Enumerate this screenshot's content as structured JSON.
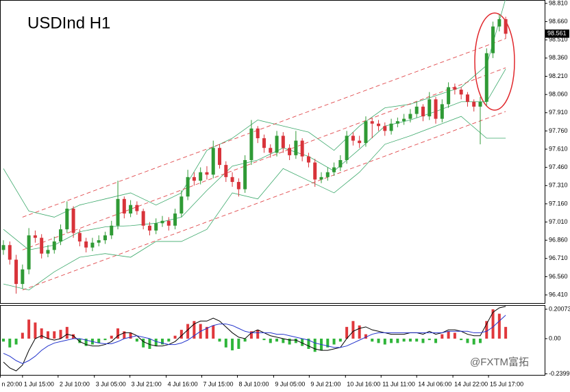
{
  "chart_data": [
    {
      "type": "candlestick",
      "title": "USDInd  H1",
      "up_color": "#2f9a35",
      "down_color": "#d8333a",
      "xlim": [
        -0.54,
        85.13
      ],
      "xticks": [
        {
          "value": -0.5,
          "label": "n 20:00"
        },
        {
          "value": 3.0,
          "label": "1 Jul 15:00"
        },
        {
          "value": 8.6,
          "label": "2 Jul 10:00"
        },
        {
          "value": 14.3,
          "label": "3 Jul 05:00"
        },
        {
          "value": 19.9,
          "label": "3 Jul 21:00"
        },
        {
          "value": 25.6,
          "label": "4 Jul 16:00"
        },
        {
          "value": 31.2,
          "label": "7 Jul 15:00"
        },
        {
          "value": 36.8,
          "label": "8 Jul 10:00"
        },
        {
          "value": 42.5,
          "label": "9 Jul 05:00"
        },
        {
          "value": 48.1,
          "label": "9 Jul 21:00"
        },
        {
          "value": 53.8,
          "label": "10 Jul 16:00"
        },
        {
          "value": 59.4,
          "label": "11 Jul 11:00"
        },
        {
          "value": 65.0,
          "label": "14 Jul 06:00"
        },
        {
          "value": 70.7,
          "label": "14 Jul 22:00"
        },
        {
          "value": 76.3,
          "label": "15 Jul 17:00"
        }
      ],
      "ylim": [
        96.354,
        98.838
      ],
      "yticks": [
        {
          "value": 98.81,
          "label": "98.810"
        },
        {
          "value": 98.66,
          "label": "98.660"
        },
        {
          "value": 98.51,
          "label": "98.510"
        },
        {
          "value": 98.36,
          "label": "98.360"
        },
        {
          "value": 98.21,
          "label": "98.210"
        },
        {
          "value": 98.06,
          "label": "98.060"
        },
        {
          "value": 97.91,
          "label": "97.910"
        },
        {
          "value": 97.76,
          "label": "97.760"
        },
        {
          "value": 97.61,
          "label": "97.610"
        },
        {
          "value": 97.46,
          "label": "97.460"
        },
        {
          "value": 97.31,
          "label": "97.310"
        },
        {
          "value": 97.16,
          "label": "97.160"
        },
        {
          "value": 97.01,
          "label": "97.010"
        },
        {
          "value": 96.86,
          "label": "96.860"
        },
        {
          "value": 96.71,
          "label": "96.710"
        },
        {
          "value": 96.56,
          "label": "96.560"
        },
        {
          "value": 96.41,
          "label": "96.410"
        }
      ],
      "grid": false,
      "last_price": 98.561,
      "open": [
        96.78,
        96.82,
        96.7,
        96.5,
        96.62,
        96.9,
        96.88,
        96.75,
        96.78,
        96.85,
        96.95,
        97.12,
        96.92,
        96.85,
        96.8,
        96.84,
        96.86,
        96.9,
        96.98,
        97.2,
        97.08,
        97.15,
        97.1,
        96.98,
        96.94,
        97.0,
        97.02,
        96.98,
        97.08,
        97.22,
        97.38,
        97.35,
        97.42,
        97.4,
        97.62,
        97.48,
        97.38,
        97.34,
        97.28,
        97.52,
        97.78,
        97.7,
        97.62,
        97.58,
        97.72,
        97.62,
        97.56,
        97.68,
        97.55,
        97.5,
        97.36,
        97.38,
        97.42,
        97.46,
        97.52,
        97.72,
        97.68,
        97.66,
        97.84,
        97.82,
        97.8,
        97.76,
        97.82,
        97.84,
        97.86,
        97.9,
        97.96,
        97.88,
        98.02,
        97.86,
        97.98,
        98.12,
        98.1,
        98.06,
        98.0,
        97.96,
        98.0,
        98.4,
        98.62,
        98.68
      ],
      "high": [
        96.86,
        96.85,
        96.74,
        96.66,
        96.96,
        96.94,
        96.91,
        96.82,
        96.89,
        96.99,
        97.18,
        97.14,
        96.95,
        96.88,
        96.88,
        96.9,
        96.93,
        97.02,
        97.35,
        97.22,
        97.19,
        97.18,
        97.12,
        97.01,
        97.04,
        97.06,
        97.05,
        97.12,
        97.27,
        97.44,
        97.42,
        97.46,
        97.47,
        97.68,
        97.65,
        97.51,
        97.42,
        97.37,
        97.56,
        97.85,
        97.8,
        97.73,
        97.65,
        97.76,
        97.75,
        97.65,
        97.76,
        97.7,
        97.58,
        97.53,
        97.42,
        97.46,
        97.5,
        97.56,
        97.76,
        97.75,
        97.72,
        97.88,
        97.87,
        97.85,
        97.83,
        97.86,
        97.87,
        97.9,
        97.94,
        98.0,
        97.98,
        98.08,
        98.04,
        98.02,
        98.16,
        98.15,
        98.12,
        98.08,
        98.02,
        98.04,
        98.44,
        98.66,
        98.72,
        98.7
      ],
      "low": [
        96.74,
        96.66,
        96.42,
        96.46,
        96.58,
        96.84,
        96.71,
        96.72,
        96.75,
        96.82,
        96.92,
        96.88,
        96.81,
        96.76,
        96.77,
        96.81,
        96.83,
        96.87,
        96.95,
        97.04,
        97.05,
        97.07,
        96.95,
        96.9,
        96.91,
        96.97,
        96.94,
        96.95,
        97.05,
        97.19,
        97.31,
        97.32,
        97.36,
        97.37,
        97.45,
        97.34,
        97.3,
        97.22,
        97.25,
        97.48,
        97.66,
        97.58,
        97.54,
        97.55,
        97.58,
        97.52,
        97.53,
        97.51,
        97.46,
        97.3,
        97.33,
        97.35,
        97.39,
        97.43,
        97.49,
        97.64,
        97.62,
        97.63,
        97.7,
        97.76,
        97.72,
        97.73,
        97.79,
        97.81,
        97.83,
        97.87,
        97.84,
        97.85,
        97.82,
        97.83,
        97.95,
        98.06,
        98.02,
        97.96,
        97.92,
        97.65,
        97.97,
        98.36,
        98.58,
        98.52
      ],
      "close": [
        96.82,
        96.7,
        96.5,
        96.62,
        96.9,
        96.88,
        96.75,
        96.78,
        96.85,
        96.95,
        97.12,
        96.92,
        96.85,
        96.8,
        96.84,
        96.86,
        96.9,
        96.98,
        97.2,
        97.08,
        97.15,
        97.1,
        96.98,
        96.94,
        97.0,
        97.02,
        96.98,
        97.08,
        97.22,
        97.38,
        97.35,
        97.42,
        97.4,
        97.62,
        97.48,
        97.38,
        97.34,
        97.28,
        97.52,
        97.78,
        97.7,
        97.62,
        97.58,
        97.72,
        97.62,
        97.56,
        97.68,
        97.55,
        97.5,
        97.36,
        97.38,
        97.42,
        97.46,
        97.52,
        97.72,
        97.68,
        97.66,
        97.84,
        97.82,
        97.8,
        97.76,
        97.82,
        97.84,
        97.86,
        97.9,
        97.96,
        97.88,
        98.02,
        97.86,
        97.98,
        98.12,
        98.1,
        98.06,
        98.0,
        97.96,
        98.0,
        98.4,
        98.62,
        98.68,
        98.56
      ],
      "bands": {
        "x": [
          0,
          4,
          8,
          12,
          16,
          20,
          24,
          28,
          32,
          36,
          40,
          44,
          48,
          52,
          56,
          60,
          64,
          68,
          72,
          76,
          79
        ],
        "color": "#3aa86a",
        "series": [
          {
            "values": [
              97.45,
              97.1,
              97.05,
              97.15,
              97.2,
              97.25,
              97.15,
              97.25,
              97.6,
              97.7,
              97.85,
              97.8,
              97.75,
              97.6,
              97.8,
              97.95,
              97.98,
              98.05,
              98.12,
              98.3,
              98.85
            ]
          },
          {
            "values": [
              96.95,
              96.78,
              96.82,
              96.93,
              96.97,
              96.98,
              97.0,
              97.05,
              97.27,
              97.47,
              97.52,
              97.62,
              97.55,
              97.43,
              97.61,
              97.8,
              97.85,
              97.92,
              98.0,
              98.0,
              98.27
            ]
          },
          {
            "values": [
              96.5,
              96.45,
              96.6,
              96.72,
              96.75,
              96.72,
              96.85,
              96.85,
              96.95,
              97.25,
              97.2,
              97.45,
              97.35,
              97.25,
              97.42,
              97.65,
              97.72,
              97.8,
              97.88,
              97.7,
              97.7
            ]
          }
        ]
      },
      "channels": {
        "color": "#e0484b",
        "lines": [
          {
            "start": [
              3,
              97.05
            ],
            "end": [
              79,
              98.52
            ]
          },
          {
            "start": [
              3,
              96.78
            ],
            "end": [
              79,
              98.28
            ]
          },
          {
            "start": [
              3,
              96.45
            ],
            "end": [
              79,
              97.92
            ]
          }
        ]
      }
    },
    {
      "type": "macd",
      "ylim": [
        -0.2474,
        0.2287
      ],
      "yticks": [
        0.20073,
        {
          "value": 0,
          "label": "0.00"
        },
        -0.2399
      ],
      "pos_color": "#e0383c",
      "neg_color": "#2fb53a",
      "histogram": [
        -0.02,
        -0.06,
        -0.04,
        0.04,
        0.13,
        0.11,
        0.07,
        0.05,
        0.05,
        0.06,
        0.08,
        0.03,
        -0.03,
        -0.05,
        -0.04,
        -0.03,
        -0.01,
        0.02,
        0.07,
        0.05,
        0.04,
        -0.02,
        -0.06,
        -0.07,
        -0.05,
        -0.04,
        -0.02,
        0.02,
        0.06,
        0.1,
        0.12,
        0.1,
        0.08,
        0.09,
        -0.02,
        -0.06,
        -0.08,
        -0.07,
        -0.02,
        0.05,
        0.06,
        -0.01,
        -0.03,
        -0.02,
        -0.03,
        -0.04,
        -0.03,
        -0.05,
        -0.07,
        -0.09,
        -0.08,
        -0.06,
        -0.04,
        -0.02,
        0.08,
        0.12,
        0.09,
        0.03,
        -0.02,
        -0.03,
        -0.04,
        -0.03,
        -0.03,
        -0.02,
        -0.02,
        -0.02,
        -0.03,
        -0.01,
        -0.03,
        0.03,
        0.05,
        0.04,
        -0.01,
        -0.03,
        -0.04,
        -0.03,
        0.12,
        0.2,
        0.17,
        0.08
      ],
      "series": [
        {
          "color": "#000000",
          "values": [
            -0.16,
            -0.2,
            -0.22,
            -0.18,
            -0.08,
            0.0,
            0.02,
            0.0,
            -0.01,
            0.0,
            0.03,
            0.02,
            -0.02,
            -0.04,
            -0.05,
            -0.05,
            -0.04,
            -0.02,
            0.02,
            0.04,
            0.04,
            0.02,
            -0.02,
            -0.04,
            -0.05,
            -0.05,
            -0.04,
            -0.02,
            0.02,
            0.06,
            0.1,
            0.12,
            0.12,
            0.14,
            0.12,
            0.08,
            0.04,
            0.01,
            0.0,
            0.04,
            0.06,
            0.04,
            0.02,
            0.01,
            0.0,
            -0.01,
            -0.01,
            -0.03,
            -0.05,
            -0.07,
            -0.08,
            -0.08,
            -0.07,
            -0.06,
            0.0,
            0.05,
            0.07,
            0.08,
            0.06,
            0.05,
            0.04,
            0.03,
            0.03,
            0.03,
            0.04,
            0.04,
            0.03,
            0.05,
            0.03,
            0.04,
            0.06,
            0.06,
            0.05,
            0.03,
            0.02,
            0.02,
            0.1,
            0.18,
            0.21,
            0.22
          ]
        },
        {
          "color": "#2233cc",
          "values": [
            -0.1,
            -0.12,
            -0.15,
            -0.17,
            -0.15,
            -0.12,
            -0.08,
            -0.05,
            -0.03,
            -0.02,
            -0.01,
            0.0,
            0.0,
            -0.01,
            -0.02,
            -0.03,
            -0.035,
            -0.035,
            -0.02,
            0.0,
            0.01,
            0.02,
            0.01,
            0.0,
            -0.02,
            -0.03,
            -0.04,
            -0.04,
            -0.03,
            -0.01,
            0.02,
            0.05,
            0.07,
            0.09,
            0.1,
            0.1,
            0.09,
            0.07,
            0.05,
            0.04,
            0.04,
            0.04,
            0.04,
            0.03,
            0.03,
            0.02,
            0.01,
            0.0,
            -0.01,
            -0.03,
            -0.04,
            -0.05,
            -0.06,
            -0.06,
            -0.05,
            -0.03,
            -0.01,
            0.01,
            0.03,
            0.04,
            0.04,
            0.04,
            0.04,
            0.04,
            0.04,
            0.04,
            0.04,
            0.04,
            0.04,
            0.04,
            0.05,
            0.05,
            0.05,
            0.05,
            0.04,
            0.04,
            0.05,
            0.08,
            0.12,
            0.16
          ]
        }
      ]
    }
  ],
  "watermark": "@FXTM富拓"
}
